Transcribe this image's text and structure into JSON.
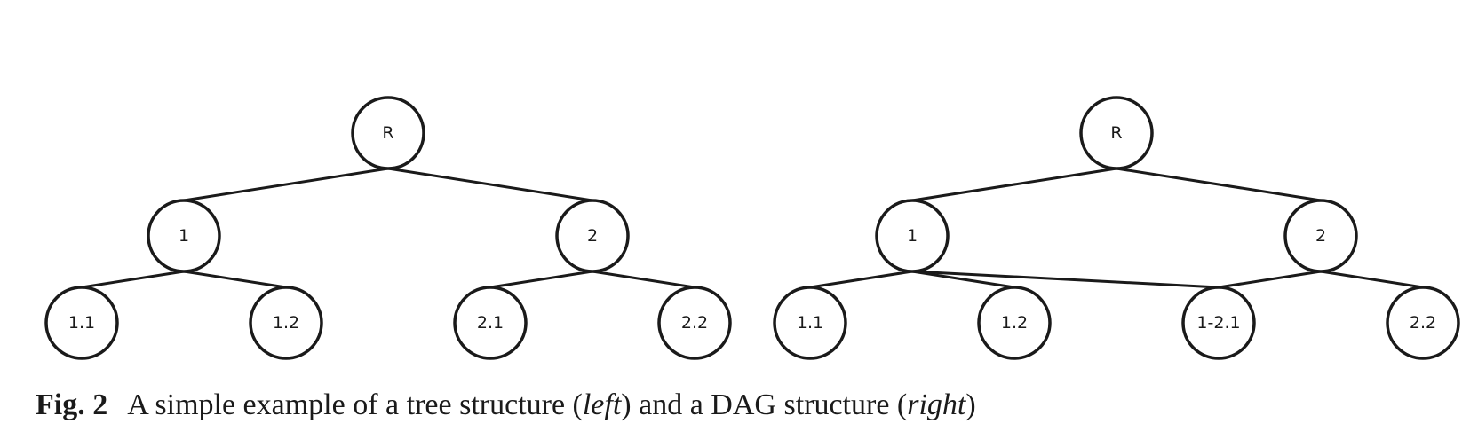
{
  "diagrams": {
    "tree": {
      "nodes": [
        {
          "id": "R",
          "label": "R"
        },
        {
          "id": "1",
          "label": "1"
        },
        {
          "id": "2",
          "label": "2"
        },
        {
          "id": "1.1",
          "label": "1.1"
        },
        {
          "id": "1.2",
          "label": "1.2"
        },
        {
          "id": "2.1",
          "label": "2.1"
        },
        {
          "id": "2.2",
          "label": "2.2"
        }
      ],
      "edges": [
        [
          "R",
          "1"
        ],
        [
          "R",
          "2"
        ],
        [
          "1",
          "1.1"
        ],
        [
          "1",
          "1.2"
        ],
        [
          "2",
          "2.1"
        ],
        [
          "2",
          "2.2"
        ]
      ]
    },
    "dag": {
      "nodes": [
        {
          "id": "R",
          "label": "R"
        },
        {
          "id": "1",
          "label": "1"
        },
        {
          "id": "2",
          "label": "2"
        },
        {
          "id": "1.1",
          "label": "1.1"
        },
        {
          "id": "1.2",
          "label": "1.2"
        },
        {
          "id": "1-2.1",
          "label": "1-2.1"
        },
        {
          "id": "2.2",
          "label": "2.2"
        }
      ],
      "edges": [
        [
          "R",
          "1"
        ],
        [
          "R",
          "2"
        ],
        [
          "1",
          "1.1"
        ],
        [
          "1",
          "1.2"
        ],
        [
          "1",
          "1-2.1"
        ],
        [
          "2",
          "1-2.1"
        ],
        [
          "2",
          "2.2"
        ]
      ]
    }
  },
  "caption": {
    "fig_label": "Fig. 2",
    "text_a": "A simple example of a tree structure (",
    "left_word": "left",
    "text_b": ") and a DAG structure (",
    "right_word": "right",
    "text_c": ")"
  }
}
